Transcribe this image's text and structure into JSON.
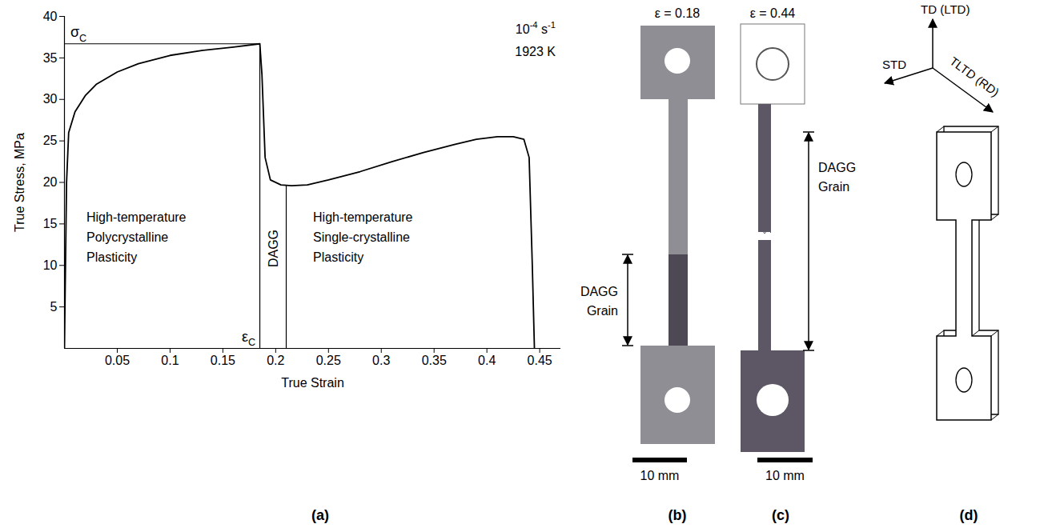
{
  "chart_data": {
    "type": "line",
    "panel": "(a)",
    "x_label": "True Strain",
    "y_label": "True Stress, MPa",
    "xlim": [
      0,
      0.47
    ],
    "ylim": [
      0,
      40
    ],
    "xticks": [
      0.05,
      0.1,
      0.15,
      0.2,
      0.25,
      0.3,
      0.35,
      0.4,
      0.45
    ],
    "yticks": [
      5,
      10,
      15,
      20,
      25,
      30,
      35,
      40
    ],
    "color": "#000000",
    "x": [
      0,
      0.002,
      0.004,
      0.01,
      0.02,
      0.03,
      0.05,
      0.07,
      0.1,
      0.13,
      0.16,
      0.185,
      0.187,
      0.19,
      0.195,
      0.205,
      0.215,
      0.23,
      0.25,
      0.28,
      0.31,
      0.34,
      0.37,
      0.39,
      0.41,
      0.425,
      0.435,
      0.44,
      0.443,
      0.445
    ],
    "values": [
      0,
      20,
      26,
      28.5,
      30.5,
      31.8,
      33.3,
      34.3,
      35.3,
      35.9,
      36.3,
      36.7,
      33,
      23,
      20.3,
      19.7,
      19.6,
      19.7,
      20.3,
      21.3,
      22.5,
      23.6,
      24.6,
      25.2,
      25.5,
      25.5,
      25.2,
      23,
      10,
      0
    ],
    "critical_point": {
      "strain": 0.185,
      "stress": 36.7,
      "strain_label": {
        "base": "ε",
        "sub": "C"
      },
      "stress_label": {
        "base": "σ",
        "sub": "C"
      }
    },
    "dagg_end": {
      "strain": 0.21,
      "stress": 19.6
    },
    "annotations": {
      "rate": [
        {
          "t": "10"
        },
        {
          "t": "-4",
          "sup": true
        },
        {
          "t": " s"
        },
        {
          "t": "-1",
          "sup": true
        }
      ],
      "temperature": "1923 K",
      "before": [
        "High-temperature",
        "Polycrystalline",
        "Plasticity"
      ],
      "transition": "DAGG",
      "after": [
        "High-temperature",
        "Single-crystalline",
        "Plasticity"
      ]
    }
  },
  "specimens": [
    {
      "panel": "(b)",
      "strain_label": "ε = 0.18",
      "grain_label": [
        "DAGG",
        "Grain"
      ],
      "scale_bar": "10 mm"
    },
    {
      "panel": "(c)",
      "strain_label": "ε = 0.44",
      "grain_label": [
        "DAGG",
        "Grain"
      ],
      "scale_bar": "10 mm"
    }
  ],
  "schematic": {
    "panel": "(d)",
    "axes": [
      "TD (LTD)",
      "STD",
      "TLTD (RD)"
    ]
  }
}
